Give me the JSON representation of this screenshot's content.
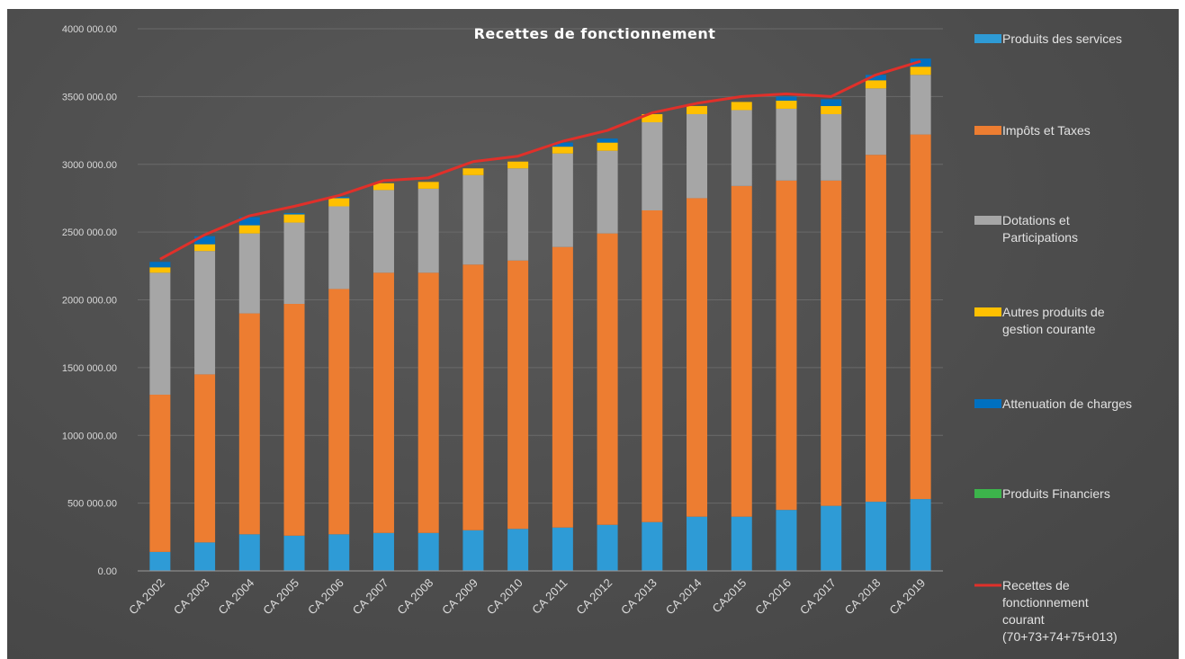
{
  "chart_data": {
    "type": "bar",
    "stacked": true,
    "title": "Recettes de fonctionnement",
    "categories": [
      "CA 2002",
      "CA 2003",
      "CA 2004",
      "CA 2005",
      "CA 2006",
      "CA 2007",
      "CA 2008",
      "CA 2009",
      "CA 2010",
      "CA 2011",
      "CA 2012",
      "CA 2013",
      "CA 2014",
      "CA2015",
      "CA 2016",
      "CA 2017",
      "CA 2018",
      "CA 2019"
    ],
    "ylim": [
      0,
      4000000
    ],
    "yticks": [
      "0.00",
      "500 000.00",
      "1000 000.00",
      "1500 000.00",
      "2000 000.00",
      "2500 000.00",
      "3000 000.00",
      "3500 000.00",
      "4000 000.00"
    ],
    "ytick_values": [
      0,
      500000,
      1000000,
      1500000,
      2000000,
      2500000,
      3000000,
      3500000,
      4000000
    ],
    "grid": true,
    "legend_position": "right",
    "series": [
      {
        "name": "Produits des services",
        "color": "#2e9bd6",
        "values": [
          140000,
          210000,
          270000,
          260000,
          270000,
          280000,
          280000,
          300000,
          310000,
          320000,
          340000,
          360000,
          400000,
          400000,
          450000,
          480000,
          510000,
          530000
        ]
      },
      {
        "name": "Impôts et Taxes",
        "color": "#ed7d31",
        "values": [
          1160000,
          1240000,
          1630000,
          1710000,
          1810000,
          1920000,
          1920000,
          1960000,
          1980000,
          2070000,
          2150000,
          2300000,
          2350000,
          2440000,
          2430000,
          2400000,
          2560000,
          2690000
        ]
      },
      {
        "name": "Dotations et Participations",
        "color": "#a6a6a6",
        "values": [
          900000,
          910000,
          590000,
          600000,
          610000,
          610000,
          620000,
          660000,
          680000,
          690000,
          610000,
          650000,
          620000,
          560000,
          530000,
          490000,
          490000,
          440000
        ]
      },
      {
        "name": "Autres produits de gestion courante",
        "color": "#ffc000",
        "values": [
          40000,
          50000,
          60000,
          60000,
          60000,
          50000,
          50000,
          50000,
          50000,
          50000,
          60000,
          60000,
          60000,
          60000,
          60000,
          60000,
          60000,
          60000
        ]
      },
      {
        "name": "Attenuation de charges",
        "color": "#0070c0",
        "values": [
          40000,
          60000,
          60000,
          10000,
          10000,
          0,
          0,
          0,
          0,
          30000,
          30000,
          0,
          0,
          0,
          30000,
          50000,
          40000,
          60000
        ]
      },
      {
        "name": "Produits Financiers",
        "color": "#3cb44b",
        "values": [
          0,
          0,
          0,
          0,
          0,
          0,
          0,
          0,
          0,
          0,
          0,
          0,
          0,
          0,
          0,
          0,
          0,
          0
        ]
      }
    ],
    "line_series": {
      "name": "Recettes de fonctionnement courant (70+73+74+75+013)",
      "legend_lines": [
        "Recettes de",
        "fonctionnement",
        "courant",
        "(70+73+74+75+013)"
      ],
      "color": "#e0302a",
      "values": [
        2300000,
        2480000,
        2620000,
        2690000,
        2770000,
        2880000,
        2900000,
        3020000,
        3060000,
        3170000,
        3250000,
        3380000,
        3450000,
        3500000,
        3520000,
        3500000,
        3660000,
        3760000
      ]
    },
    "legend": [
      {
        "lines": [
          "Produits des services"
        ],
        "color": "#2e9bd6",
        "kind": "box"
      },
      {
        "lines": [
          "Impôts et Taxes"
        ],
        "color": "#ed7d31",
        "kind": "box"
      },
      {
        "lines": [
          "Dotations et",
          "Participations"
        ],
        "color": "#a6a6a6",
        "kind": "box"
      },
      {
        "lines": [
          "Autres produits de",
          "gestion courante"
        ],
        "color": "#ffc000",
        "kind": "box"
      },
      {
        "lines": [
          "Attenuation de charges"
        ],
        "color": "#0070c0",
        "kind": "box"
      },
      {
        "lines": [
          "Produits Financiers"
        ],
        "color": "#3cb44b",
        "kind": "box"
      },
      {
        "lines": [
          "Recettes de",
          "fonctionnement",
          "courant",
          "(70+73+74+75+013)"
        ],
        "color": "#e0302a",
        "kind": "line"
      }
    ]
  }
}
